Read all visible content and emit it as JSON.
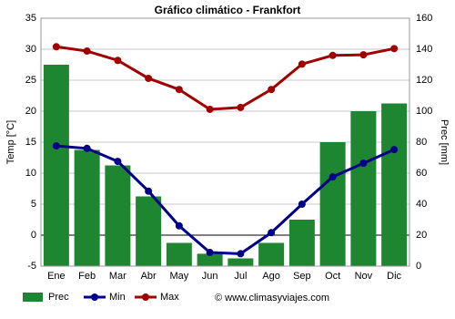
{
  "chart_data": {
    "type": "climate",
    "title": "Gráfico climático - Frankfort",
    "categories": [
      "Ene",
      "Feb",
      "Mar",
      "Abr",
      "May",
      "Jun",
      "Jul",
      "Ago",
      "Sep",
      "Oct",
      "Nov",
      "Dic"
    ],
    "series": [
      {
        "name": "Prec",
        "type": "bar",
        "axis": "y2",
        "color": "#1e8530",
        "values": [
          130,
          75,
          65,
          45,
          15,
          8,
          5,
          15,
          30,
          80,
          100,
          105
        ]
      },
      {
        "name": "Min",
        "type": "line",
        "axis": "y",
        "color": "#00008b",
        "values": [
          14.4,
          14.0,
          11.9,
          7.1,
          1.5,
          -2.8,
          -3.0,
          0.4,
          5.0,
          9.4,
          11.6,
          13.8
        ]
      },
      {
        "name": "Max",
        "type": "line",
        "axis": "y",
        "color": "#a00000",
        "values": [
          30.4,
          29.7,
          28.2,
          25.3,
          23.5,
          20.3,
          20.6,
          23.5,
          27.6,
          29.0,
          29.1,
          30.1
        ]
      }
    ],
    "ylabel": "Temp [°C]",
    "y2label": "Prec [mm]",
    "ylim": [
      -5,
      35
    ],
    "yticks": [
      -5,
      0,
      5,
      10,
      15,
      20,
      25,
      30,
      35
    ],
    "y2lim": [
      0,
      160
    ],
    "y2ticks": [
      0,
      20,
      40,
      60,
      80,
      100,
      120,
      140,
      160
    ],
    "grid": true,
    "legend": "bottom",
    "source": "© www.climasyviajes.com"
  }
}
